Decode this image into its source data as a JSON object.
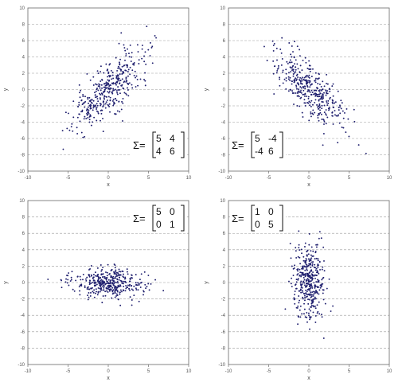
{
  "chart_data": [
    {
      "type": "scatter",
      "title": "",
      "xlabel": "x",
      "ylabel": "y",
      "xlim": [
        -10,
        10
      ],
      "ylim": [
        -10,
        10
      ],
      "xticks": [
        "-10",
        "-5",
        "0",
        "5",
        "10"
      ],
      "yticks": [
        "10",
        "8",
        "6",
        "4",
        "2",
        "0",
        "-2",
        "-4",
        "-6",
        "-8",
        "-10"
      ],
      "grid": "horizontal dashed",
      "marker_color": "#1f1f6e",
      "annotation": {
        "symbol": "Σ=",
        "matrix": [
          [
            "5",
            "4"
          ],
          [
            "4",
            "6"
          ]
        ],
        "position": "bottom-right"
      },
      "distribution": {
        "mean": [
          0,
          0
        ],
        "cov": [
          [
            5,
            4
          ],
          [
            4,
            6
          ]
        ],
        "n": 400
      },
      "series": [
        {
          "points": []
        }
      ]
    },
    {
      "type": "scatter",
      "title": "",
      "xlabel": "x",
      "ylabel": "y",
      "xlim": [
        -10,
        10
      ],
      "ylim": [
        -10,
        10
      ],
      "xticks": [
        "-10",
        "-5",
        "0",
        "5",
        "10"
      ],
      "yticks": [
        "10",
        "8",
        "6",
        "4",
        "2",
        "0",
        "-2",
        "-4",
        "-6",
        "-8",
        "-10"
      ],
      "grid": "horizontal dashed",
      "marker_color": "#1f1f6e",
      "annotation": {
        "symbol": "Σ=",
        "matrix": [
          [
            "5",
            "-4"
          ],
          [
            "-4",
            "6"
          ]
        ],
        "position": "bottom-left"
      },
      "distribution": {
        "mean": [
          0,
          0
        ],
        "cov": [
          [
            5,
            -4
          ],
          [
            -4,
            6
          ]
        ],
        "n": 400
      },
      "series": [
        {
          "points": []
        }
      ]
    },
    {
      "type": "scatter",
      "title": "",
      "xlabel": "x",
      "ylabel": "y",
      "xlim": [
        -10,
        10
      ],
      "ylim": [
        -10,
        10
      ],
      "xticks": [
        "-10",
        "-5",
        "0",
        "5",
        "10"
      ],
      "yticks": [
        "10",
        "8",
        "6",
        "4",
        "2",
        "0",
        "-2",
        "-4",
        "-6",
        "-8",
        "-10"
      ],
      "grid": "horizontal dashed",
      "marker_color": "#1f1f6e",
      "annotation": {
        "symbol": "Σ=",
        "matrix": [
          [
            "5",
            "0"
          ],
          [
            "0",
            "1"
          ]
        ],
        "position": "top-right"
      },
      "distribution": {
        "mean": [
          0,
          0
        ],
        "cov": [
          [
            5,
            0
          ],
          [
            0,
            1
          ]
        ],
        "n": 400
      },
      "series": [
        {
          "points": []
        }
      ]
    },
    {
      "type": "scatter",
      "title": "",
      "xlabel": "x",
      "ylabel": "y",
      "xlim": [
        -10,
        10
      ],
      "ylim": [
        -10,
        10
      ],
      "xticks": [
        "-10",
        "-5",
        "0",
        "5",
        "10"
      ],
      "yticks": [
        "10",
        "8",
        "6",
        "4",
        "2",
        "0",
        "-2",
        "-4",
        "-6",
        "-8",
        "-10"
      ],
      "grid": "horizontal dashed",
      "marker_color": "#1f1f6e",
      "annotation": {
        "symbol": "Σ=",
        "matrix": [
          [
            "1",
            "0"
          ],
          [
            "0",
            "5"
          ]
        ],
        "position": "top-left"
      },
      "distribution": {
        "mean": [
          0,
          0
        ],
        "cov": [
          [
            1,
            0
          ],
          [
            0,
            5
          ]
        ],
        "n": 400
      },
      "series": [
        {
          "points": []
        }
      ]
    }
  ]
}
